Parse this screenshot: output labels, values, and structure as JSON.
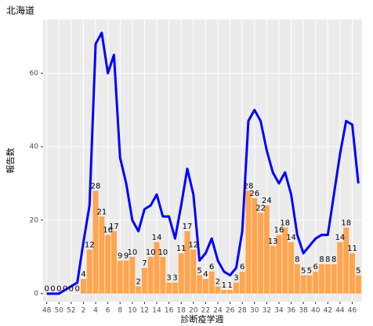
{
  "chart_data": {
    "type": "bar",
    "title": "北海道",
    "y_label": "報告数",
    "x_label": "診断疫学週",
    "categories": [
      "48",
      null,
      "50",
      null,
      "52",
      null,
      "2",
      null,
      "4",
      null,
      "6",
      null,
      "8",
      null,
      "10",
      null,
      "12",
      null,
      "14",
      null,
      "16",
      null,
      "18",
      null,
      "20",
      null,
      "22",
      null,
      "24",
      null,
      "26",
      null,
      "28",
      null,
      "30",
      null,
      "32",
      null,
      "34",
      null,
      "36",
      null,
      "38",
      null,
      "40",
      null,
      "42",
      null,
      "44",
      null,
      "46",
      null
    ],
    "series": [
      {
        "type": "bar",
        "color": "#ffa54f",
        "values": [
          0,
          0,
          0,
          0,
          0,
          0,
          4,
          12,
          28,
          21,
          16,
          17,
          9,
          9,
          10,
          2,
          7,
          10,
          14,
          10,
          3,
          3,
          11,
          17,
          12,
          5,
          4,
          6,
          2,
          1,
          1,
          3,
          6,
          28,
          26,
          22,
          24,
          13,
          16,
          18,
          14,
          8,
          5,
          5,
          6,
          8,
          8,
          8,
          14,
          18,
          11,
          5
        ]
      },
      {
        "type": "line",
        "color": "#0000ff",
        "values": [
          0,
          0,
          0,
          1,
          2,
          3,
          14,
          24,
          68,
          71,
          60,
          65,
          37,
          30,
          20,
          17,
          23,
          24,
          27,
          21,
          21,
          15,
          24,
          34,
          27,
          9,
          11,
          15,
          9,
          6,
          5,
          7,
          17,
          47,
          50,
          47,
          39,
          33,
          30,
          33,
          27,
          16,
          11,
          13,
          15,
          16,
          16,
          27,
          38,
          47,
          46,
          30
        ]
      }
    ],
    "ylim": [
      -2.2,
      74.6
    ],
    "yticks": [
      0,
      20,
      40,
      60
    ],
    "grid": true
  }
}
